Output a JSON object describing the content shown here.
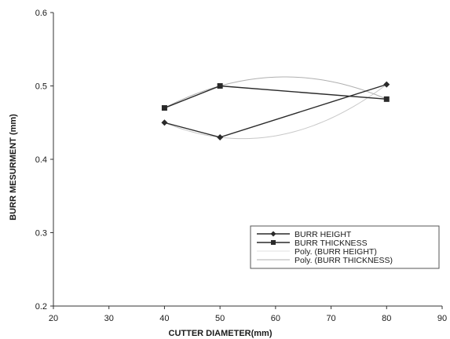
{
  "chart_data": {
    "type": "line",
    "title": "",
    "xlabel": "CUTTER DIAMETER(mm)",
    "ylabel": "BURR MESURMENT (mm)",
    "xlim": [
      20,
      90
    ],
    "ylim": [
      0.2,
      0.6
    ],
    "x_ticks": [
      20,
      30,
      40,
      50,
      60,
      70,
      80,
      90
    ],
    "y_ticks": [
      0.2,
      0.3,
      0.4,
      0.5,
      0.6
    ],
    "x_tick_labels": [
      "20",
      "30",
      "40",
      "50",
      "60",
      "70",
      "80",
      "90"
    ],
    "y_tick_labels": [
      "0.2",
      "0.3",
      "0.4",
      "0.5",
      "0.6"
    ],
    "grid": false,
    "legend_position": "bottom-right",
    "series": [
      {
        "name": "BURR HEIGHT",
        "marker": "diamond",
        "color": "#2a2a2a",
        "x": [
          40,
          50,
          80
        ],
        "y": [
          0.45,
          0.43,
          0.502
        ]
      },
      {
        "name": "BURR THICKNESS",
        "marker": "square",
        "color": "#2a2a2a",
        "x": [
          40,
          50,
          80
        ],
        "y": [
          0.47,
          0.5,
          0.482
        ]
      }
    ],
    "trendlines": [
      {
        "name": "Poly. (BURR HEIGHT)",
        "kind": "polynomial-2",
        "color": "#c8c8c8",
        "x": [
          40,
          50,
          80
        ],
        "y": [
          0.45,
          0.43,
          0.502
        ]
      },
      {
        "name": "Poly. (BURR THICKNESS)",
        "kind": "polynomial-2",
        "color": "#b0b0b0",
        "x": [
          40,
          50,
          80
        ],
        "y": [
          0.47,
          0.5,
          0.482
        ]
      }
    ]
  }
}
